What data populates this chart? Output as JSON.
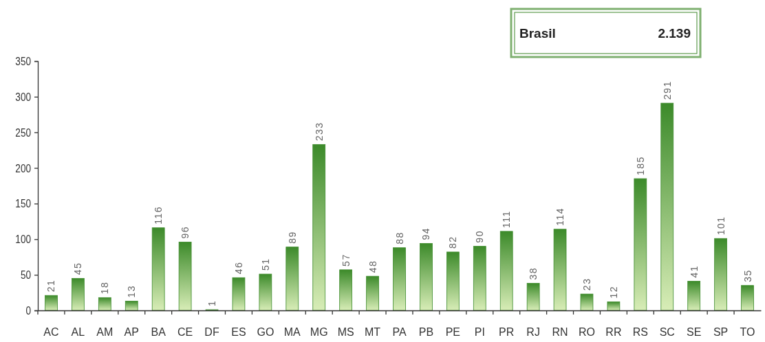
{
  "chart_data": {
    "type": "bar",
    "categories": [
      "AC",
      "AL",
      "AM",
      "AP",
      "BA",
      "CE",
      "DF",
      "ES",
      "GO",
      "MA",
      "MG",
      "MS",
      "MT",
      "PA",
      "PB",
      "PE",
      "PI",
      "PR",
      "RJ",
      "RN",
      "RO",
      "RR",
      "RS",
      "SC",
      "SE",
      "SP",
      "TO"
    ],
    "values": [
      21,
      45,
      18,
      13,
      116,
      96,
      1,
      46,
      51,
      89,
      233,
      57,
      48,
      88,
      94,
      82,
      90,
      111,
      38,
      114,
      23,
      12,
      185,
      291,
      41,
      101,
      35
    ],
    "color": "#3c8a2a",
    "ylim": [
      0,
      350
    ],
    "yticks": [
      0,
      50,
      100,
      150,
      200,
      250,
      300,
      350
    ],
    "data_labels": true,
    "annotations": [
      "Brasil",
      "2.139"
    ]
  }
}
